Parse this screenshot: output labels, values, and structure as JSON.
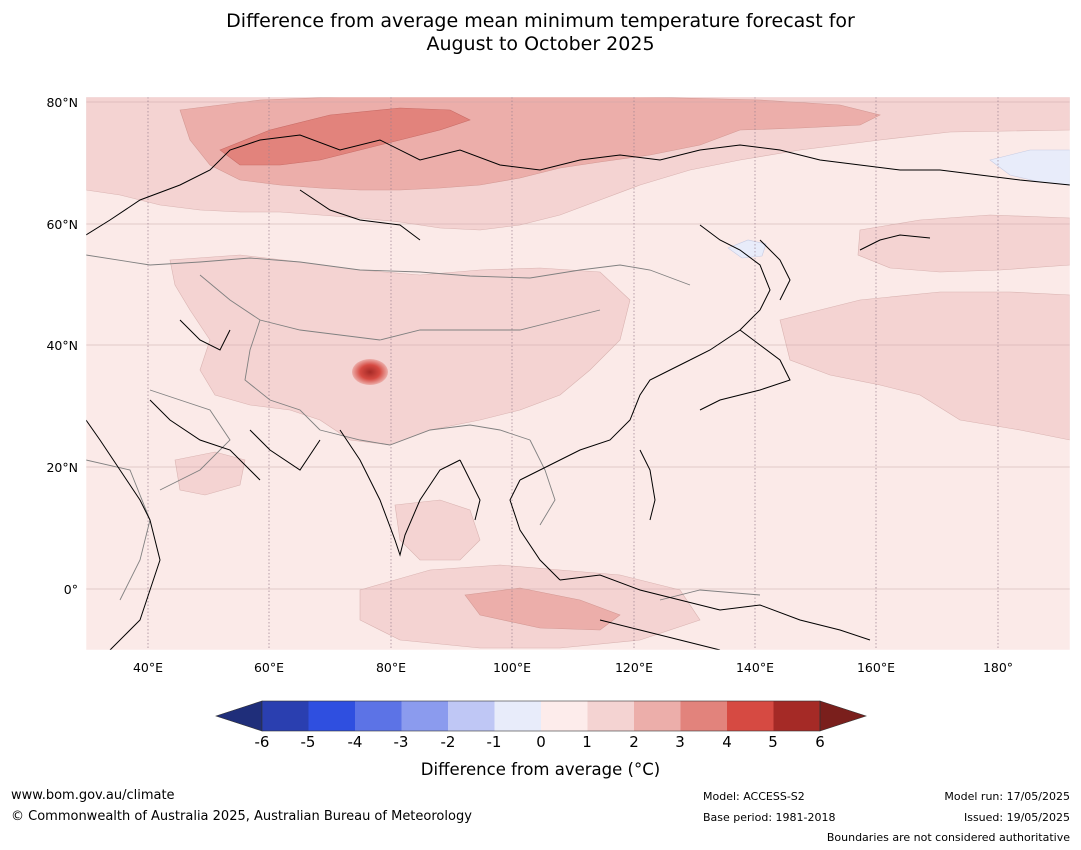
{
  "title": {
    "line1": "Difference from average mean minimum temperature forecast for",
    "line2": "August to October 2025"
  },
  "map": {
    "lat_labels": [
      "80°N",
      "60°N",
      "40°N",
      "20°N",
      "0°"
    ],
    "lon_labels": [
      "40°E",
      "60°E",
      "80°E",
      "100°E",
      "120°E",
      "140°E",
      "160°E",
      "180°"
    ],
    "lon_range": [
      30,
      192
    ],
    "lat_range": [
      -10,
      80
    ],
    "colors": {
      "ocean_base": "#fbeae8",
      "class_0_1": "#fdecea",
      "class_1_2": "#f4d3d2",
      "class_2_3": "#ecaeaa",
      "class_3_4": "#e2837c",
      "class_4_5": "#d64a42",
      "class_neg_1_0": "#e8ecfa",
      "coast": "#000000",
      "border": "#808080",
      "grid": "#c9a8a8"
    }
  },
  "colorbar": {
    "tick_labels": [
      "-6",
      "-5",
      "-4",
      "-3",
      "-2",
      "-1",
      "0",
      "1",
      "2",
      "3",
      "4",
      "5",
      "6"
    ],
    "colors": [
      "#1f2e7a",
      "#2a3fb0",
      "#2f4fe0",
      "#5c73e6",
      "#8b9bee",
      "#bfc7f5",
      "#e8ecfa",
      "#fdeceb",
      "#f4d3d2",
      "#ecaeaa",
      "#e2837c",
      "#d64a42",
      "#a52a26",
      "#7a1f1c"
    ],
    "label": "Difference from average (",
    "label_unit": "°C)"
  },
  "footer": {
    "website": "www.bom.gov.au/climate",
    "copyright": "© Commonwealth of Australia 2025, Australian Bureau of Meteorology",
    "model": "Model: ACCESS-S2",
    "base_period": "Base period: 1981-2018",
    "model_run": "Model run: 17/05/2025",
    "issued": "Issued: 19/05/2025",
    "disclaimer": "Boundaries are not considered authoritative"
  }
}
